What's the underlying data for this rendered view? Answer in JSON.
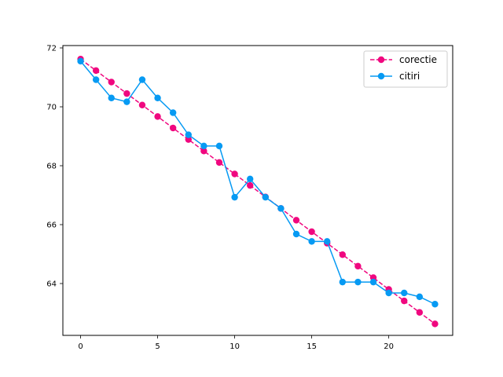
{
  "chart_data": {
    "type": "line",
    "title": "",
    "xlabel": "",
    "ylabel": "",
    "xlim": [
      -1.15,
      24.15
    ],
    "ylim": [
      62.24,
      72.08
    ],
    "xticks": [
      0,
      5,
      10,
      15,
      20
    ],
    "yticks": [
      64,
      66,
      68,
      70,
      72
    ],
    "grid": false,
    "legend_position": "top-right",
    "series": [
      {
        "name": "corectie",
        "color": "#f0077f",
        "line_style": "dashed",
        "marker": "circle",
        "x": [
          0,
          1,
          2,
          3,
          4,
          5,
          6,
          7,
          8,
          9,
          10,
          11,
          12,
          13,
          14,
          15,
          16,
          17,
          18,
          19,
          20,
          21,
          22,
          23
        ],
        "y": [
          71.62,
          71.23,
          70.84,
          70.45,
          70.06,
          69.67,
          69.28,
          68.89,
          68.5,
          68.11,
          67.72,
          67.33,
          66.94,
          66.55,
          66.15,
          65.76,
          65.37,
          64.98,
          64.59,
          64.2,
          63.8,
          63.41,
          63.02,
          62.63
        ]
      },
      {
        "name": "citiri",
        "color": "#069af3",
        "line_style": "solid",
        "marker": "circle",
        "x": [
          0,
          1,
          2,
          3,
          4,
          5,
          6,
          7,
          8,
          9,
          10,
          11,
          12,
          13,
          14,
          15,
          16,
          17,
          18,
          19,
          20,
          21,
          22,
          23
        ],
        "y": [
          71.55,
          70.92,
          70.3,
          70.17,
          70.92,
          70.3,
          69.8,
          69.05,
          68.67,
          68.67,
          66.93,
          67.55,
          66.93,
          66.55,
          65.68,
          65.43,
          65.43,
          64.05,
          64.05,
          64.05,
          63.68,
          63.68,
          63.55,
          63.3
        ]
      }
    ]
  }
}
